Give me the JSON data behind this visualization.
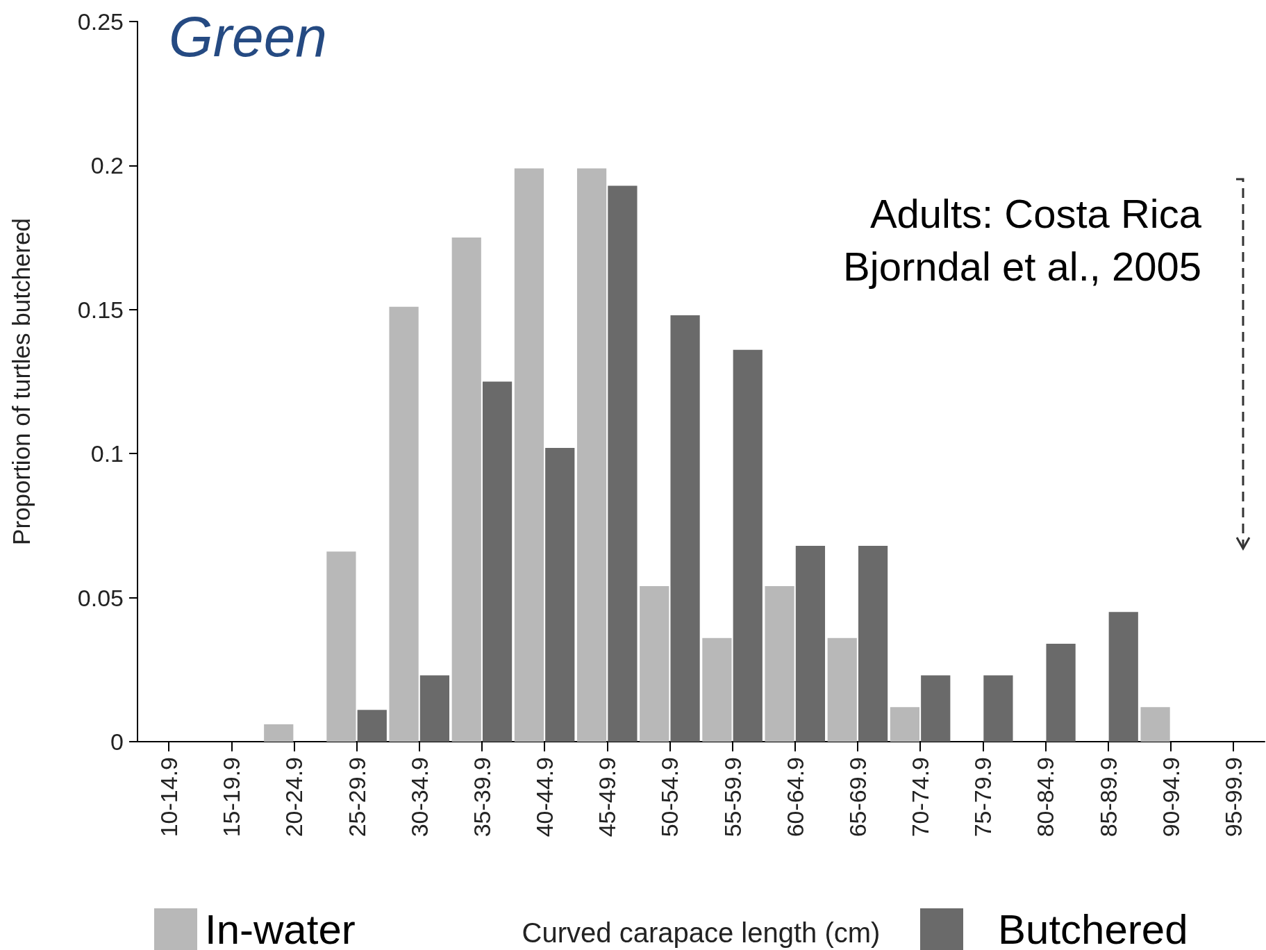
{
  "chart_data": {
    "type": "bar",
    "title": "Green",
    "xlabel": "Curved carapace length (cm)",
    "ylabel": "Proportion of turtles butchered",
    "categories": [
      "10-14.9",
      "15-19.9",
      "20-24.9",
      "25-29.9",
      "30-34.9",
      "35-39.9",
      "40-44.9",
      "45-49.9",
      "50-54.9",
      "55-59.9",
      "60-64.9",
      "65-69.9",
      "70-74.9",
      "75-79.9",
      "80-84.9",
      "85-89.9",
      "90-94.9",
      "95-99.9"
    ],
    "series": [
      {
        "name": "In-water",
        "color": "#b8b8b8",
        "values": [
          0,
          0,
          0.006,
          0.066,
          0.151,
          0.175,
          0.199,
          0.199,
          0.054,
          0.036,
          0.054,
          0.036,
          0.012,
          0,
          0,
          0,
          0.012,
          0
        ]
      },
      {
        "name": "Butchered",
        "color": "#6a6a6a",
        "values": [
          0,
          0,
          0,
          0.011,
          0.023,
          0.125,
          0.102,
          0.193,
          0.148,
          0.136,
          0.068,
          0.068,
          0.023,
          0.023,
          0.034,
          0.045,
          0,
          0
        ]
      }
    ],
    "ylim": [
      0,
      0.25
    ],
    "yticks": [
      0,
      0.05,
      0.1,
      0.15,
      0.2,
      0.25
    ],
    "annotations": [
      "Adults: Costa Rica",
      "Bjorndal et al., 2005"
    ],
    "legend": "bottom",
    "grid": false
  }
}
